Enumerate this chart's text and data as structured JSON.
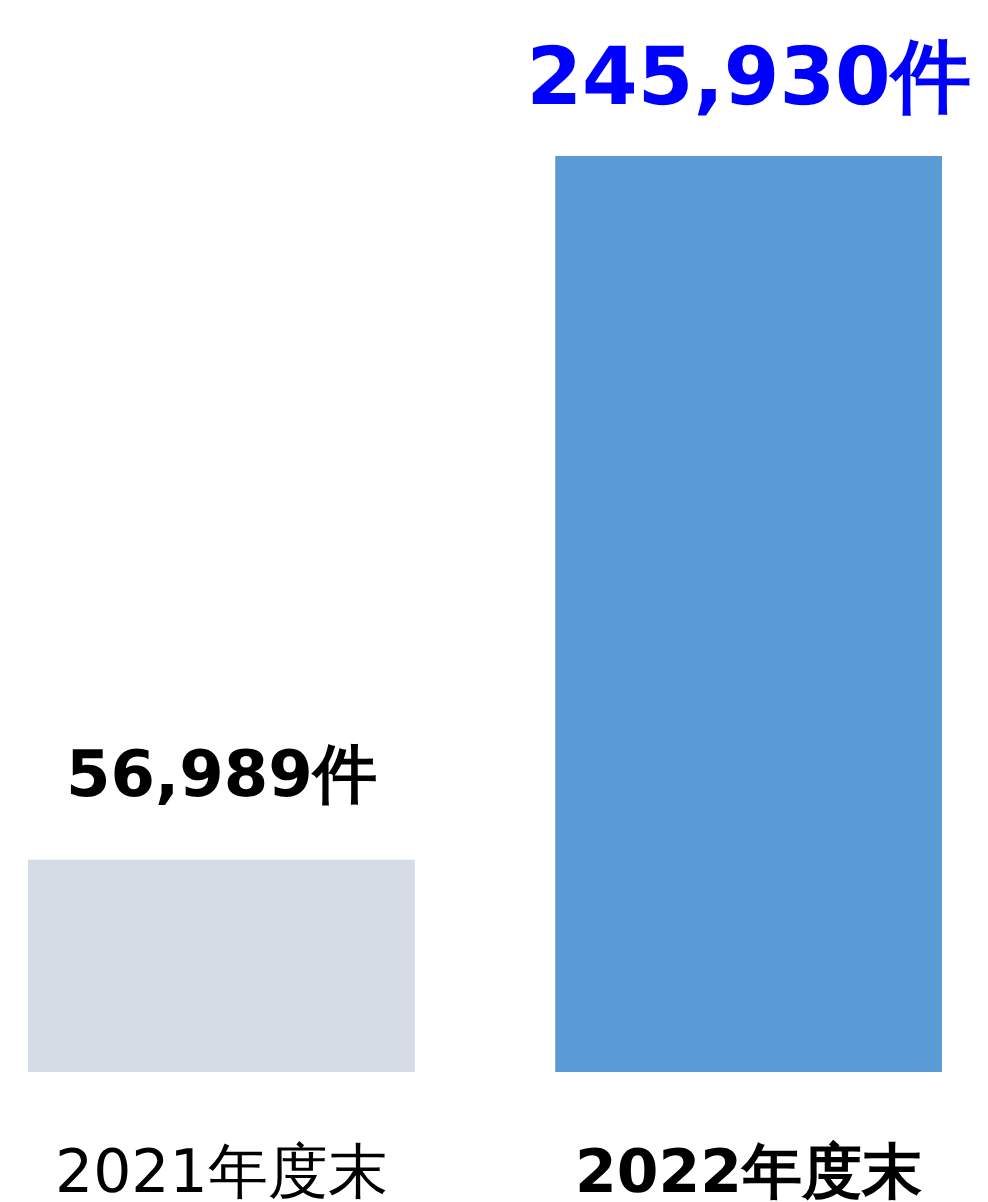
{
  "chart_data": {
    "type": "bar",
    "categories": [
      "2021年度末",
      "2022年度末"
    ],
    "values": [
      56989,
      245930
    ],
    "colors": [
      "#d6dce5",
      "#5b9bd5"
    ],
    "value_labels": [
      "56,989件",
      "245,930件"
    ]
  }
}
